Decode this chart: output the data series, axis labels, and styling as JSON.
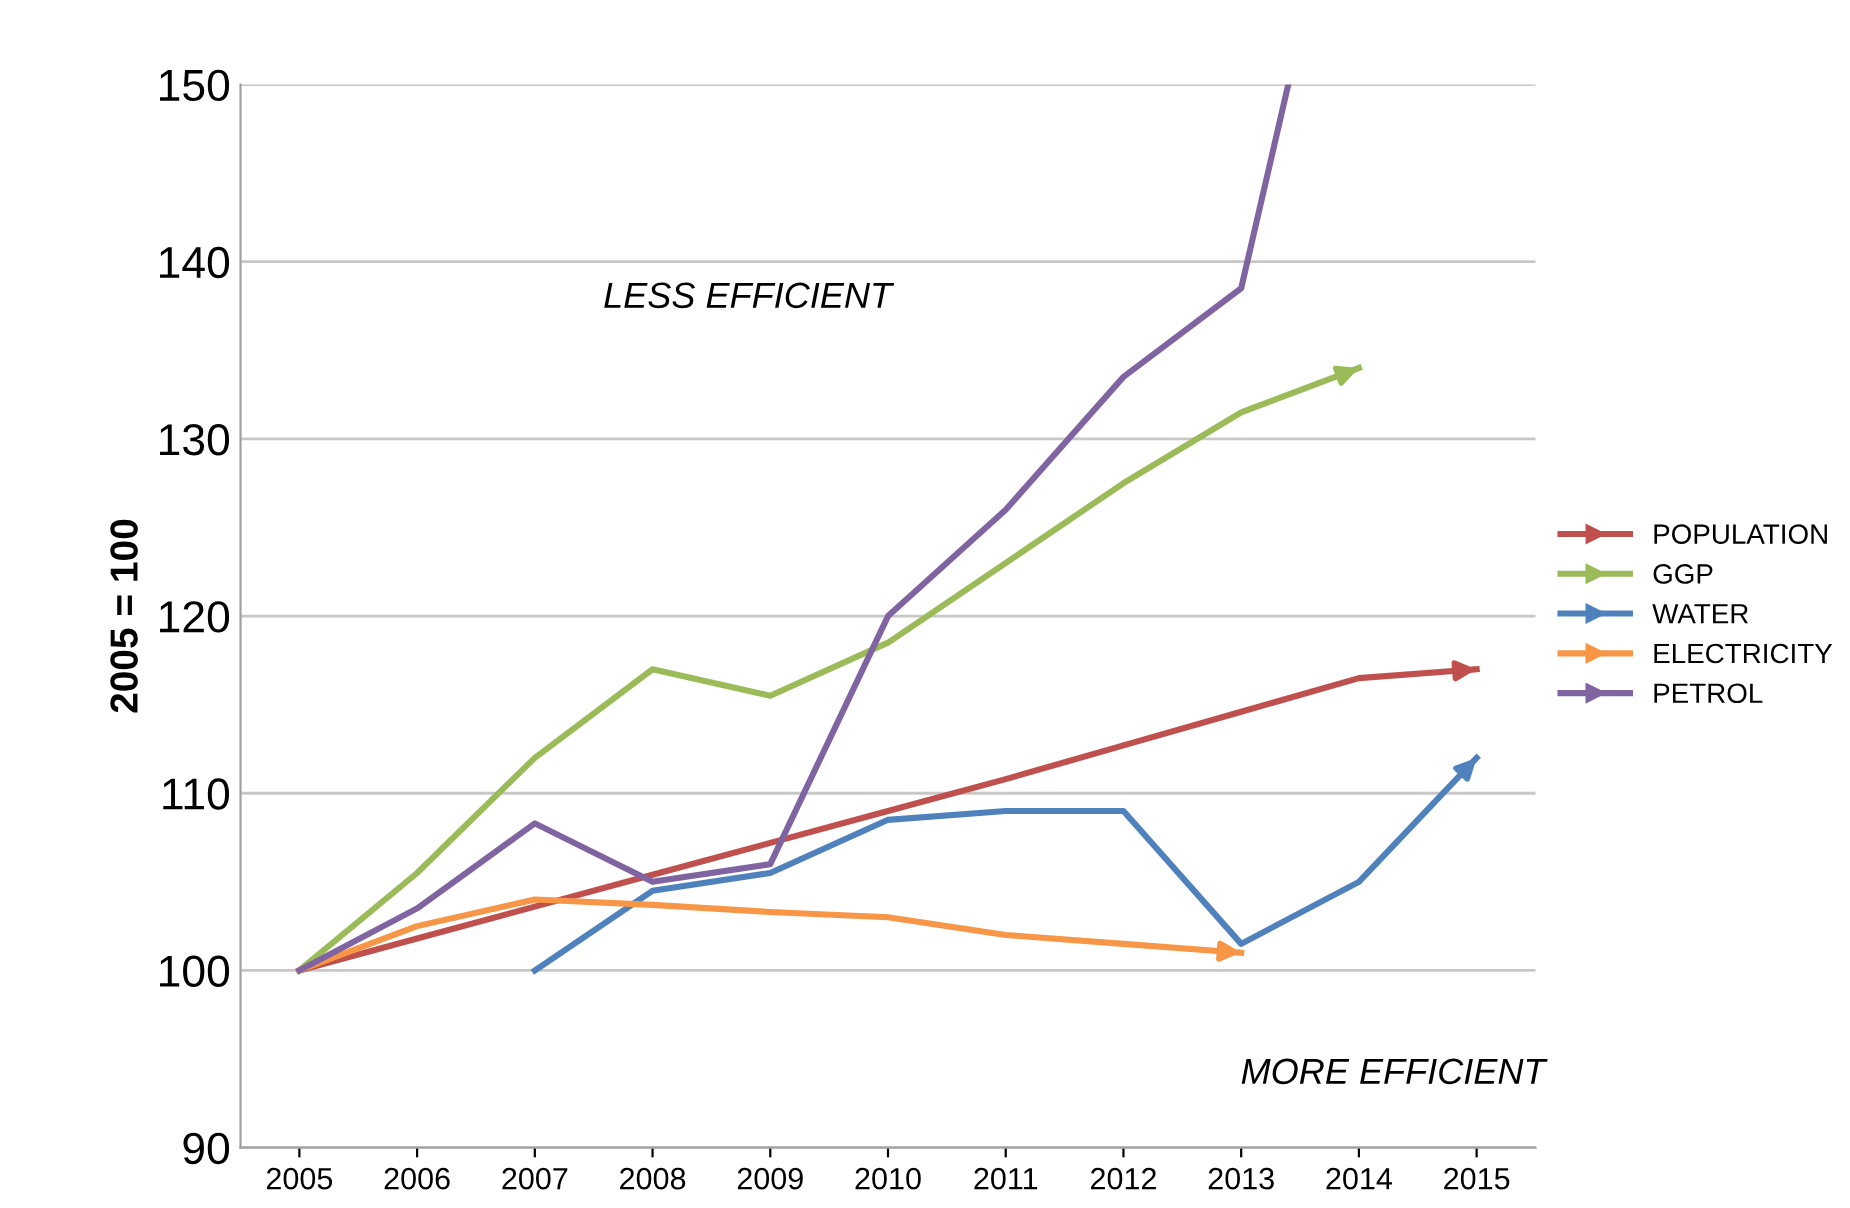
{
  "chart_data": {
    "type": "line",
    "ylabel": "2005 = 100",
    "x": [
      2005,
      2006,
      2007,
      2008,
      2009,
      2010,
      2011,
      2012,
      2013,
      2014,
      2015
    ],
    "xlim": [
      2004.5,
      2015.5
    ],
    "xticks": [
      2005,
      2006,
      2007,
      2008,
      2009,
      2010,
      2011,
      2012,
      2013,
      2014,
      2015
    ],
    "ylim": [
      90,
      150
    ],
    "yticks": [
      90,
      100,
      110,
      120,
      130,
      140,
      150
    ],
    "grid": "y",
    "legend": "right",
    "marker": "none",
    "line_style": "solid",
    "annotations": [
      "LESS EFFICIENT",
      "MORE EFFICIENT"
    ],
    "series": [
      {
        "name": "POPULATION",
        "color": "#c0504d",
        "values": [
          100,
          101.8,
          103.6,
          105.4,
          107.2,
          109,
          110.8,
          112.7,
          114.6,
          116.5,
          117
        ]
      },
      {
        "name": "GGP",
        "color": "#9bbb59",
        "values": [
          100,
          105.5,
          112,
          117,
          115.5,
          118.5,
          123,
          127.5,
          131.5,
          134,
          null
        ]
      },
      {
        "name": "WATER",
        "color": "#4f81bd",
        "values": [
          null,
          null,
          100,
          104.5,
          105.5,
          108.5,
          109,
          109,
          101.5,
          105,
          112
        ]
      },
      {
        "name": "ELECTRICITY",
        "color": "#f79646",
        "values": [
          100,
          102.5,
          104,
          103.7,
          103.3,
          103,
          102,
          101.5,
          101,
          null,
          null
        ]
      },
      {
        "name": "PETROL",
        "color": "#8064a2",
        "x": [
          2005,
          2006,
          2007,
          2008,
          2009,
          2010,
          2011,
          2012,
          2013,
          2013.4
        ],
        "values": [
          100,
          103.5,
          108.3,
          105,
          106,
          120,
          126,
          133.5,
          138.5,
          150
        ]
      }
    ]
  }
}
